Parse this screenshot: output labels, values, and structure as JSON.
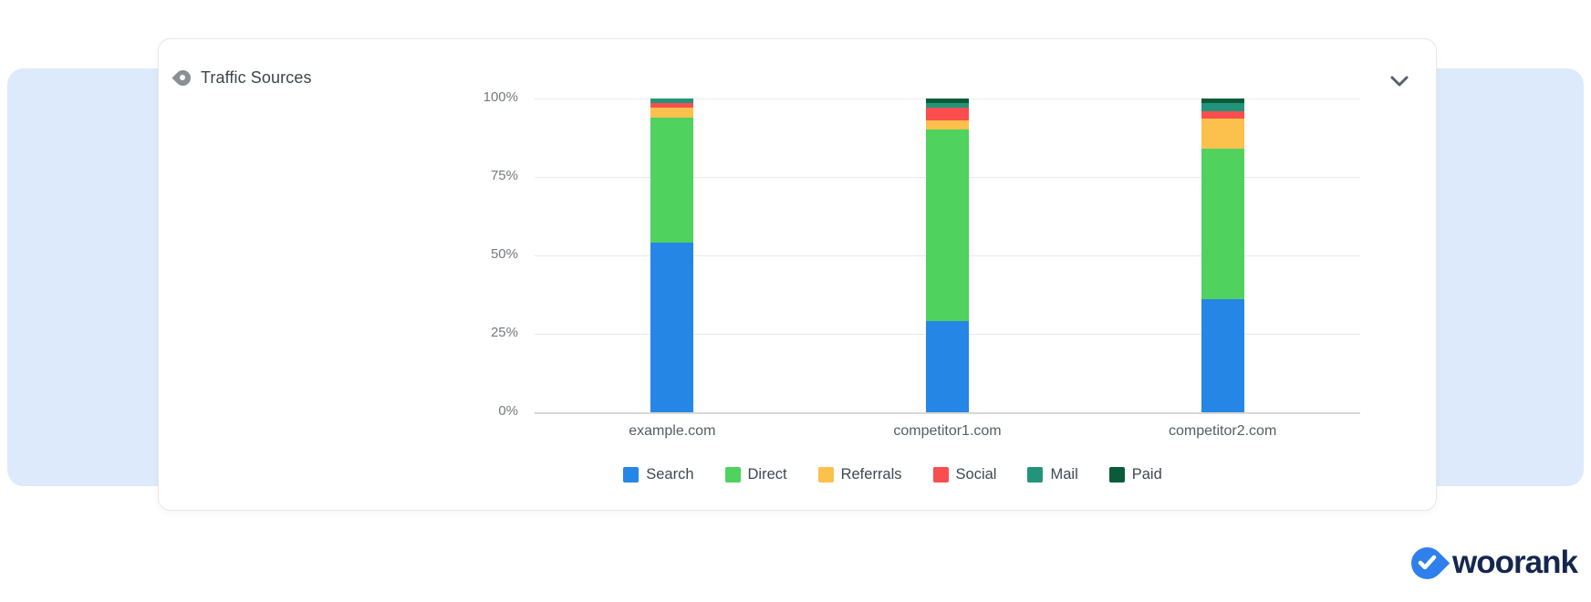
{
  "page": {
    "background": "#ffffff",
    "band_color": "#dceafb"
  },
  "card": {
    "title": "Traffic Sources",
    "title_icon": "eye-icon",
    "collapse_icon": "chevron-down-icon"
  },
  "chart_data": {
    "type": "bar",
    "stacked": true,
    "title": "Traffic Sources",
    "categories": [
      "example.com",
      "competitor1.com",
      "competitor2.com"
    ],
    "series": [
      {
        "name": "Search",
        "color": "#2586e5",
        "values": [
          54,
          29,
          36
        ]
      },
      {
        "name": "Direct",
        "color": "#50d25f",
        "values": [
          40,
          61,
          48
        ]
      },
      {
        "name": "Referrals",
        "color": "#fcc04d",
        "values": [
          3,
          3,
          9.5
        ]
      },
      {
        "name": "Social",
        "color": "#fa4e4e",
        "values": [
          1.5,
          4,
          2.5
        ]
      },
      {
        "name": "Mail",
        "color": "#23947c",
        "values": [
          1.5,
          1.5,
          2.5
        ]
      },
      {
        "name": "Paid",
        "color": "#0a5c38",
        "values": [
          0,
          1.5,
          1.5
        ]
      }
    ],
    "y_ticks": [
      "100%",
      "75%",
      "50%",
      "25%",
      "0%"
    ],
    "ylim": [
      0,
      100
    ],
    "grid": true,
    "legend_position": "bottom"
  },
  "logo": {
    "text": "woorank",
    "mark_icon": "check-icon",
    "brand_color": "#2f80ed",
    "text_color": "#14274e"
  }
}
